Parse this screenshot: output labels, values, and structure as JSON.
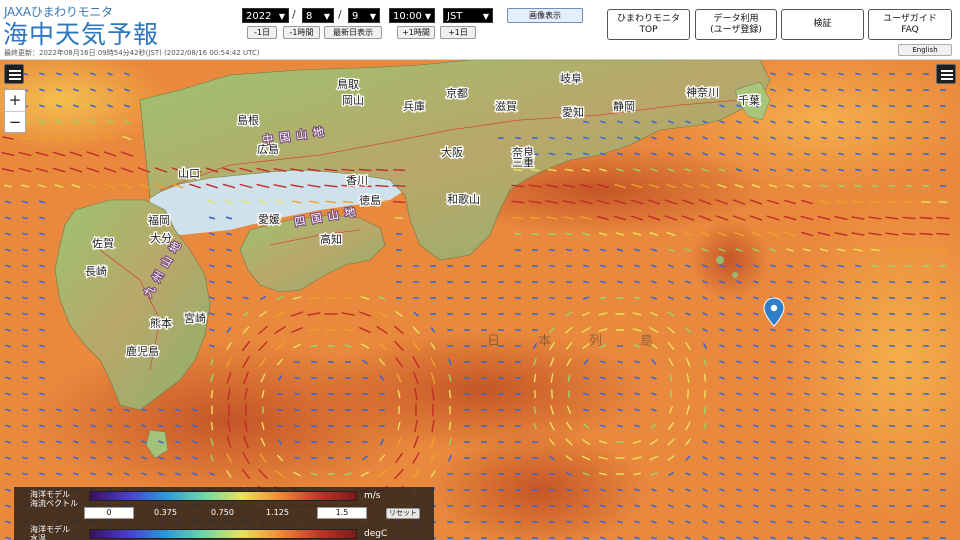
{
  "header": {
    "brand_sub": "JAXAひまわりモニタ",
    "brand_main": "海中天気予報",
    "last_updated": "最終更新：2022年08月16日 09時54分42秒(JST) (2022/08/16 00:54:42 UTC)"
  },
  "date_selector": {
    "year": "2022",
    "month": "8",
    "day": "9",
    "time": "10:00",
    "timezone": "JST",
    "separator": "/"
  },
  "nav_buttons": {
    "prev_day": "-1日",
    "prev_hour": "-1時間",
    "latest": "最新日表示",
    "next_hour": "+1時間",
    "next_day": "+1日"
  },
  "image_toggle": "画像表示",
  "top_links": [
    {
      "line1": "ひまわりモニタ",
      "line2": "TOP"
    },
    {
      "line1": "データ利用",
      "line2": "(ユーザ登録)"
    },
    {
      "line1": "検証",
      "line2": ""
    },
    {
      "line1": "ユーザガイド",
      "line2": "FAQ"
    }
  ],
  "language_button": "English",
  "map_controls": {
    "zoom_in": "+",
    "zoom_out": "−"
  },
  "map_labels": {
    "prefectures": [
      "鳥取",
      "島根",
      "岡山",
      "兵庫",
      "京都",
      "滋賀",
      "岐阜",
      "愛知",
      "静岡",
      "神奈川",
      "千葉",
      "広島",
      "山口",
      "大阪",
      "奈良",
      "三重",
      "香川",
      "愛媛",
      "徳島",
      "高知",
      "和歌山",
      "福岡",
      "佐賀",
      "長崎",
      "大分",
      "熊本",
      "宮崎",
      "鹿児島"
    ],
    "mountains": [
      "中国山地",
      "四国山地",
      "九州山地"
    ],
    "sea": "日本列島"
  },
  "legend": {
    "current": {
      "name_line1": "海洋モデル",
      "name_line2": "海流ベクトル",
      "unit": "m/s",
      "min_value": "0",
      "max_value": "1.5",
      "ticks": [
        "0.375",
        "0.750",
        "1.125"
      ],
      "reset_label": "リセット"
    },
    "temperature": {
      "name_line1": "海洋モデル",
      "name_line2": "水温",
      "unit": "degC"
    }
  },
  "colors": {
    "brand_blue": "#2e76bd",
    "ocean_warm": "#e8833a",
    "ocean_hot": "#c65a2c",
    "land_green": "#8bb566",
    "marker_blue": "#2f7fc8"
  }
}
